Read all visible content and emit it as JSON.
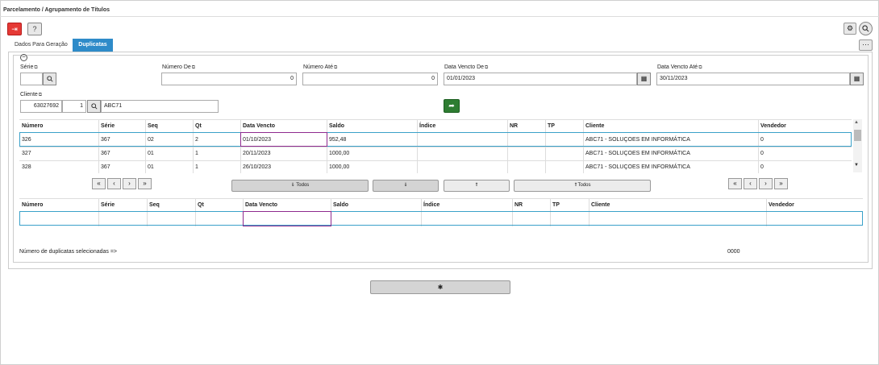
{
  "app": {
    "title": "Parcelamento / Agrupamento de Títulos"
  },
  "toolbar": {
    "exit_icon": "exit-icon",
    "help_icon": "help-icon",
    "help_label": "?",
    "settings_icon": "gear-icon",
    "search_icon": "search-icon",
    "more_label": "···"
  },
  "tabs": [
    {
      "label": "Dados Para Geração",
      "active": false
    },
    {
      "label": "Duplicatas",
      "active": true
    }
  ],
  "filters": {
    "serie": {
      "label": "Série",
      "value": ""
    },
    "numero_de": {
      "label": "Número De",
      "value": "0"
    },
    "numero_ate": {
      "label": "Número Até",
      "value": "0"
    },
    "data_vencto_de": {
      "label": "Data Vencto De",
      "value": "01/01/2023"
    },
    "data_vencto_ate": {
      "label": "Data Vencto Até",
      "value": "30/11/2023"
    },
    "cliente": {
      "label": "Cliente",
      "code": "63027692",
      "seq": "1",
      "name": "ABC71"
    }
  },
  "grid_top": {
    "columns": [
      "Número",
      "Série",
      "Seq",
      "Qt",
      "Data Vencto",
      "Saldo",
      "Índice",
      "NR",
      "TP",
      "Cliente",
      "Vendedor"
    ],
    "rows": [
      [
        "326",
        "367",
        "02",
        "2",
        "01/10/2023",
        "952,48",
        "",
        "",
        "",
        "ABC71 - SOLUÇOES EM INFORMÁTICA",
        "0"
      ],
      [
        "327",
        "367",
        "01",
        "1",
        "20/11/2023",
        "1000,00",
        "",
        "",
        "",
        "ABC71 - SOLUÇOES EM INFORMÁTICA",
        "0"
      ],
      [
        "328",
        "367",
        "01",
        "1",
        "26/10/2023",
        "1000,00",
        "",
        "",
        "",
        "ABC71 - SOLUÇOES EM INFORMÁTICA",
        "0"
      ]
    ]
  },
  "pager": {
    "first": "«",
    "prev": "‹",
    "next": "›",
    "last": "»"
  },
  "actions": {
    "down_all": "⇓ Todos",
    "down_one": "⇓",
    "up_one": "⇑",
    "up_all": "⇑Todos"
  },
  "grid_bottom": {
    "columns": [
      "Número",
      "Série",
      "Seq",
      "Qt",
      "Data Vencto",
      "Saldo",
      "Índice",
      "NR",
      "TP",
      "Cliente",
      "Vendedor"
    ]
  },
  "footer": {
    "selected_label": "Número de duplicatas selecionadas =>",
    "selected_count": "0000"
  },
  "process_button": {
    "icon": "gear-icon",
    "label": "✱"
  }
}
